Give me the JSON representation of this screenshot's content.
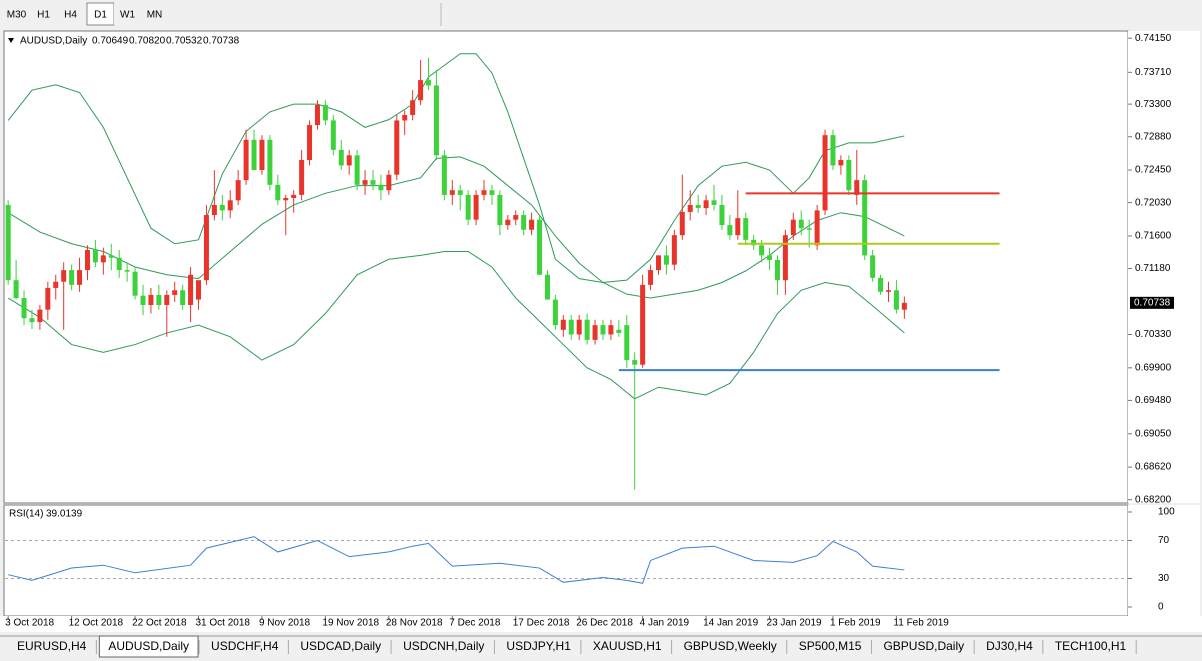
{
  "toolbar": {
    "timeframes": [
      "M30",
      "H1",
      "H4",
      "D1",
      "W1",
      "MN"
    ],
    "active_index": 3
  },
  "header": {
    "ohlc_labels": [
      "0.70649",
      "0.70820",
      "0.70532",
      "0.70738"
    ]
  },
  "chart_data": [
    {
      "type": "candlestick",
      "title": "AUDUSD,Daily",
      "color_up": "#e8342b",
      "color_down": "#3cd23a",
      "ohlc": [
        [
          0.72,
          0.7206,
          0.7097,
          0.7103
        ],
        [
          0.7103,
          0.7129,
          0.7078,
          0.708
        ],
        [
          0.708,
          0.709,
          0.7045,
          0.7054
        ],
        [
          0.7054,
          0.7065,
          0.704,
          0.7049
        ],
        [
          0.7049,
          0.7071,
          0.7039,
          0.7065
        ],
        [
          0.7065,
          0.7101,
          0.7052,
          0.7093
        ],
        [
          0.7093,
          0.711,
          0.7078,
          0.7101
        ],
        [
          0.7101,
          0.7126,
          0.7039,
          0.7116
        ],
        [
          0.7116,
          0.7123,
          0.709,
          0.7097
        ],
        [
          0.7097,
          0.7132,
          0.7088,
          0.7116
        ],
        [
          0.7116,
          0.7148,
          0.7103,
          0.7142
        ],
        [
          0.7142,
          0.7155,
          0.712,
          0.7126
        ],
        [
          0.7126,
          0.7145,
          0.711,
          0.7135
        ],
        [
          0.7135,
          0.715,
          0.7116,
          0.7132
        ],
        [
          0.7132,
          0.7142,
          0.7106,
          0.7116
        ],
        [
          0.7116,
          0.7126,
          0.7101,
          0.7114
        ],
        [
          0.7114,
          0.712,
          0.7078,
          0.7083
        ],
        [
          0.7083,
          0.7097,
          0.7058,
          0.7071
        ],
        [
          0.7071,
          0.7093,
          0.706,
          0.7084
        ],
        [
          0.7084,
          0.7097,
          0.7065,
          0.7071
        ],
        [
          0.7071,
          0.709,
          0.703,
          0.7084
        ],
        [
          0.7084,
          0.7101,
          0.7075,
          0.709
        ],
        [
          0.709,
          0.7097,
          0.7065,
          0.7071
        ],
        [
          0.7071,
          0.712,
          0.7049,
          0.711
        ],
        [
          0.7078,
          0.71,
          0.7065,
          0.7103
        ],
        [
          0.7103,
          0.72,
          0.7097,
          0.7187
        ],
        [
          0.7187,
          0.7245,
          0.718,
          0.72
        ],
        [
          0.72,
          0.7213,
          0.718,
          0.7193
        ],
        [
          0.7193,
          0.7219,
          0.7183,
          0.7206
        ],
        [
          0.7206,
          0.7245,
          0.72,
          0.7232
        ],
        [
          0.7232,
          0.7297,
          0.7226,
          0.7284
        ],
        [
          0.7284,
          0.7297,
          0.7245,
          0.7245
        ],
        [
          0.7245,
          0.729,
          0.7239,
          0.7284
        ],
        [
          0.7284,
          0.729,
          0.7219,
          0.7226
        ],
        [
          0.7226,
          0.7239,
          0.72,
          0.7206
        ],
        [
          0.7206,
          0.7213,
          0.7161,
          0.7209
        ],
        [
          0.7209,
          0.7219,
          0.719,
          0.7213
        ],
        [
          0.7213,
          0.7271,
          0.7206,
          0.7258
        ],
        [
          0.7258,
          0.7309,
          0.7251,
          0.7303
        ],
        [
          0.7303,
          0.7335,
          0.7297,
          0.7329
        ],
        [
          0.7329,
          0.7335,
          0.7303,
          0.7309
        ],
        [
          0.7309,
          0.7316,
          0.7264,
          0.7271
        ],
        [
          0.7271,
          0.7284,
          0.7245,
          0.7251
        ],
        [
          0.7251,
          0.7271,
          0.7239,
          0.7264
        ],
        [
          0.7264,
          0.7271,
          0.7219,
          0.7226
        ],
        [
          0.7226,
          0.7245,
          0.7213,
          0.7232
        ],
        [
          0.7232,
          0.7245,
          0.7219,
          0.7226
        ],
        [
          0.7226,
          0.7239,
          0.7206,
          0.7219
        ],
        [
          0.7219,
          0.7245,
          0.7213,
          0.7239
        ],
        [
          0.7239,
          0.7316,
          0.7232,
          0.7309
        ],
        [
          0.7309,
          0.7322,
          0.729,
          0.7316
        ],
        [
          0.7316,
          0.7348,
          0.7309,
          0.7335
        ],
        [
          0.7335,
          0.7387,
          0.7329,
          0.7361
        ],
        [
          0.7361,
          0.739,
          0.7348,
          0.7354
        ],
        [
          0.7354,
          0.7374,
          0.7258,
          0.7264
        ],
        [
          0.7264,
          0.7271,
          0.7206,
          0.7213
        ],
        [
          0.7213,
          0.7232,
          0.72,
          0.7219
        ],
        [
          0.7219,
          0.7226,
          0.7193,
          0.7213
        ],
        [
          0.7213,
          0.7219,
          0.7174,
          0.7181
        ],
        [
          0.7181,
          0.7219,
          0.7174,
          0.7213
        ],
        [
          0.7213,
          0.7232,
          0.7206,
          0.7219
        ],
        [
          0.7219,
          0.7226,
          0.72,
          0.7213
        ],
        [
          0.7213,
          0.7219,
          0.7161,
          0.7174
        ],
        [
          0.7174,
          0.7187,
          0.7168,
          0.7181
        ],
        [
          0.7181,
          0.7193,
          0.7174,
          0.7187
        ],
        [
          0.7187,
          0.7193,
          0.7161,
          0.7168
        ],
        [
          0.7168,
          0.719,
          0.7161,
          0.7181
        ],
        [
          0.7181,
          0.7187,
          0.711,
          0.711
        ],
        [
          0.711,
          0.7116,
          0.7078,
          0.7078
        ],
        [
          0.7078,
          0.7084,
          0.7039,
          0.7045
        ],
        [
          0.7039,
          0.7058,
          0.703,
          0.7052
        ],
        [
          0.7052,
          0.7058,
          0.7026,
          0.7033
        ],
        [
          0.7033,
          0.7058,
          0.7026,
          0.7052
        ],
        [
          0.7052,
          0.706,
          0.702,
          0.7026
        ],
        [
          0.7026,
          0.7052,
          0.702,
          0.7045
        ],
        [
          0.7045,
          0.7052,
          0.7026,
          0.7033
        ],
        [
          0.7033,
          0.7052,
          0.7026,
          0.7045
        ],
        [
          0.7039,
          0.7052,
          0.703,
          0.7035
        ],
        [
          0.7045,
          0.7058,
          0.699,
          0.7
        ],
        [
          0.7,
          0.701,
          0.6833,
          0.6994
        ],
        [
          0.6994,
          0.711,
          0.699,
          0.7097
        ],
        [
          0.7097,
          0.7123,
          0.709,
          0.7116
        ],
        [
          0.7116,
          0.7135,
          0.711,
          0.7135
        ],
        [
          0.7135,
          0.7148,
          0.711,
          0.7123
        ],
        [
          0.7123,
          0.7168,
          0.7116,
          0.7161
        ],
        [
          0.7161,
          0.7239,
          0.7155,
          0.7191
        ],
        [
          0.7191,
          0.7219,
          0.718,
          0.72
        ],
        [
          0.72,
          0.7213,
          0.719,
          0.7196
        ],
        [
          0.7196,
          0.7213,
          0.7187,
          0.7206
        ],
        [
          0.7206,
          0.7226,
          0.7193,
          0.72
        ],
        [
          0.72,
          0.7213,
          0.7168,
          0.7174
        ],
        [
          0.7174,
          0.7187,
          0.7155,
          0.7161
        ],
        [
          0.7161,
          0.7219,
          0.7155,
          0.7183
        ],
        [
          0.7183,
          0.719,
          0.7148,
          0.7155
        ],
        [
          0.7155,
          0.7161,
          0.7142,
          0.7148
        ],
        [
          0.7148,
          0.7155,
          0.7126,
          0.7135
        ],
        [
          0.7135,
          0.7145,
          0.7116,
          0.7129
        ],
        [
          0.7129,
          0.7135,
          0.7084,
          0.7103
        ],
        [
          0.7103,
          0.7168,
          0.7084,
          0.7161
        ],
        [
          0.7161,
          0.719,
          0.7155,
          0.7181
        ],
        [
          0.7181,
          0.7193,
          0.7161,
          0.717
        ],
        [
          0.717,
          0.7181,
          0.7145,
          0.7168
        ],
        [
          0.7148,
          0.72,
          0.7142,
          0.7193
        ],
        [
          0.7193,
          0.7297,
          0.7187,
          0.729
        ],
        [
          0.729,
          0.7297,
          0.7245,
          0.7251
        ],
        [
          0.7251,
          0.7264,
          0.7239,
          0.7258
        ],
        [
          0.7258,
          0.7264,
          0.7213,
          0.7219
        ],
        [
          0.7213,
          0.7271,
          0.72,
          0.7232
        ],
        [
          0.7232,
          0.7239,
          0.7129,
          0.7135
        ],
        [
          0.7135,
          0.7142,
          0.7101,
          0.7106
        ],
        [
          0.7106,
          0.711,
          0.7084,
          0.7088
        ],
        [
          0.7088,
          0.7101,
          0.7075,
          0.709
        ],
        [
          0.709,
          0.7103,
          0.706,
          0.7065
        ],
        [
          0.70649,
          0.7082,
          0.70532,
          0.70738
        ]
      ],
      "overlays": [
        {
          "color": "#2e9a57",
          "x": [
            0,
            3,
            6,
            9,
            12,
            15,
            18,
            21,
            24,
            27,
            30,
            33,
            36,
            39,
            42,
            45,
            48,
            51,
            53,
            55,
            57,
            59,
            61,
            63,
            65,
            67,
            69,
            72,
            75,
            78,
            81,
            84,
            87,
            90,
            93,
            96,
            99,
            101,
            103,
            106,
            109,
            113
          ],
          "values": [
            0.7309,
            0.7348,
            0.7355,
            0.7345,
            0.73,
            0.7235,
            0.717,
            0.715,
            0.7155,
            0.724,
            0.7295,
            0.732,
            0.733,
            0.733,
            0.732,
            0.73,
            0.731,
            0.733,
            0.7365,
            0.738,
            0.7395,
            0.7395,
            0.737,
            0.732,
            0.726,
            0.72,
            0.713,
            0.7105,
            0.71,
            0.7103,
            0.713,
            0.718,
            0.7225,
            0.725,
            0.7255,
            0.7245,
            0.7215,
            0.7235,
            0.727,
            0.728,
            0.728,
            0.7289
          ]
        },
        {
          "color": "#2e9a57",
          "x": [
            0,
            4,
            8,
            12,
            16,
            20,
            24,
            28,
            32,
            36,
            40,
            44,
            48,
            52,
            54,
            57,
            60,
            63,
            66,
            69,
            72,
            75,
            78,
            81,
            84,
            87,
            90,
            93,
            96,
            99,
            102,
            105,
            108,
            113
          ],
          "values": [
            0.719,
            0.7165,
            0.715,
            0.714,
            0.712,
            0.711,
            0.7105,
            0.714,
            0.7175,
            0.72,
            0.7215,
            0.7225,
            0.7225,
            0.7235,
            0.726,
            0.7262,
            0.725,
            0.7225,
            0.72,
            0.716,
            0.7125,
            0.71,
            0.7085,
            0.708,
            0.7085,
            0.709,
            0.71,
            0.7115,
            0.7135,
            0.716,
            0.718,
            0.719,
            0.7185,
            0.716
          ]
        },
        {
          "color": "#2e9a57",
          "x": [
            0,
            4,
            8,
            12,
            16,
            20,
            24,
            28,
            32,
            36,
            40,
            44,
            48,
            52,
            55,
            58,
            61,
            64,
            67,
            70,
            73,
            76,
            79,
            82,
            85,
            88,
            91,
            94,
            97,
            100,
            103,
            106,
            109,
            113
          ],
          "values": [
            0.708,
            0.7055,
            0.702,
            0.701,
            0.702,
            0.7035,
            0.7045,
            0.703,
            0.7,
            0.702,
            0.706,
            0.711,
            0.713,
            0.7135,
            0.714,
            0.714,
            0.712,
            0.708,
            0.705,
            0.702,
            0.699,
            0.6975,
            0.695,
            0.6965,
            0.696,
            0.6955,
            0.697,
            0.701,
            0.706,
            0.709,
            0.71,
            0.7095,
            0.707,
            0.7035
          ]
        }
      ],
      "hlines": [
        {
          "value": 0.7215,
          "x": [
            93,
            125
          ],
          "color": "#e8342b"
        },
        {
          "value": 0.715,
          "x": [
            92,
            125
          ],
          "color": "#b4c81c"
        },
        {
          "value": 0.6987,
          "x": [
            77,
            125
          ],
          "color": "#3a80c6"
        }
      ],
      "xlim": [
        -0.4,
        141.2
      ],
      "ylim": [
        0.6817,
        0.7423
      ],
      "yticks": [
        {
          "value": 0.7415,
          "label": "0.74150"
        },
        {
          "value": 0.7371,
          "label": "0.73710"
        },
        {
          "value": 0.733,
          "label": "0.73300"
        },
        {
          "value": 0.7288,
          "label": "0.72880"
        },
        {
          "value": 0.7245,
          "label": "0.72450"
        },
        {
          "value": 0.7203,
          "label": "0.72030"
        },
        {
          "value": 0.716,
          "label": "0.71600"
        },
        {
          "value": 0.7118,
          "label": "0.71180"
        },
        {
          "value": 0.7033,
          "label": "0.70330"
        },
        {
          "value": 0.699,
          "label": "0.69900"
        },
        {
          "value": 0.6948,
          "label": "0.69480"
        },
        {
          "value": 0.6905,
          "label": "0.69050"
        },
        {
          "value": 0.6862,
          "label": "0.68620"
        },
        {
          "value": 0.682,
          "label": "0.68200"
        }
      ],
      "xticks": [
        {
          "value": 0,
          "label": "3 Oct 2018"
        },
        {
          "value": 8,
          "label": "12 Oct 2018"
        },
        {
          "value": 16,
          "label": "22 Oct 2018"
        },
        {
          "value": 24,
          "label": "31 Oct 2018"
        },
        {
          "value": 32,
          "label": "9 Nov 2018"
        },
        {
          "value": 40,
          "label": "19 Nov 2018"
        },
        {
          "value": 48,
          "label": "28 Nov 2018"
        },
        {
          "value": 56,
          "label": "7 Dec 2018"
        },
        {
          "value": 64,
          "label": "17 Dec 2018"
        },
        {
          "value": 72,
          "label": "26 Dec 2018"
        },
        {
          "value": 80,
          "label": "4 Jan 2019"
        },
        {
          "value": 88,
          "label": "14 Jan 2019"
        },
        {
          "value": 96,
          "label": "23 Jan 2019"
        },
        {
          "value": 104,
          "label": "1 Feb 2019"
        },
        {
          "value": 112,
          "label": "11 Feb 2019"
        }
      ]
    },
    {
      "type": "line",
      "title": "RSI(14)",
      "color": "#3a7fd5",
      "x": [
        0,
        3,
        8,
        12,
        16,
        23,
        25,
        31,
        34,
        39,
        43,
        48,
        51,
        53,
        56,
        62,
        67,
        70,
        75,
        78,
        80,
        81,
        85,
        89,
        94,
        99,
        102,
        104,
        107,
        109,
        113
      ],
      "values": [
        34,
        28,
        41,
        44,
        36,
        44,
        62,
        74,
        58,
        70,
        53,
        58,
        64,
        67,
        43,
        46,
        41,
        26,
        31,
        28,
        25,
        49,
        62,
        64,
        49,
        47,
        54,
        69,
        58,
        43,
        39.0139
      ],
      "xlim": [
        -0.4,
        141.2
      ],
      "ylim": [
        0,
        100
      ],
      "yticks": [
        100,
        70,
        30,
        0
      ],
      "levels": [
        70,
        30
      ]
    }
  ],
  "tabs": {
    "items": [
      "EURUSD,H4",
      "AUDUSD,Daily",
      "USDCHF,H4",
      "USDCAD,Daily",
      "USDCNH,Daily",
      "USDJPY,H1",
      "XAUUSD,H1",
      "GBPUSD,Weekly",
      "SP500,M15",
      "GBPUSD,Daily",
      "DJ30,H4",
      "TECH100,H1"
    ],
    "active_index": 1
  }
}
